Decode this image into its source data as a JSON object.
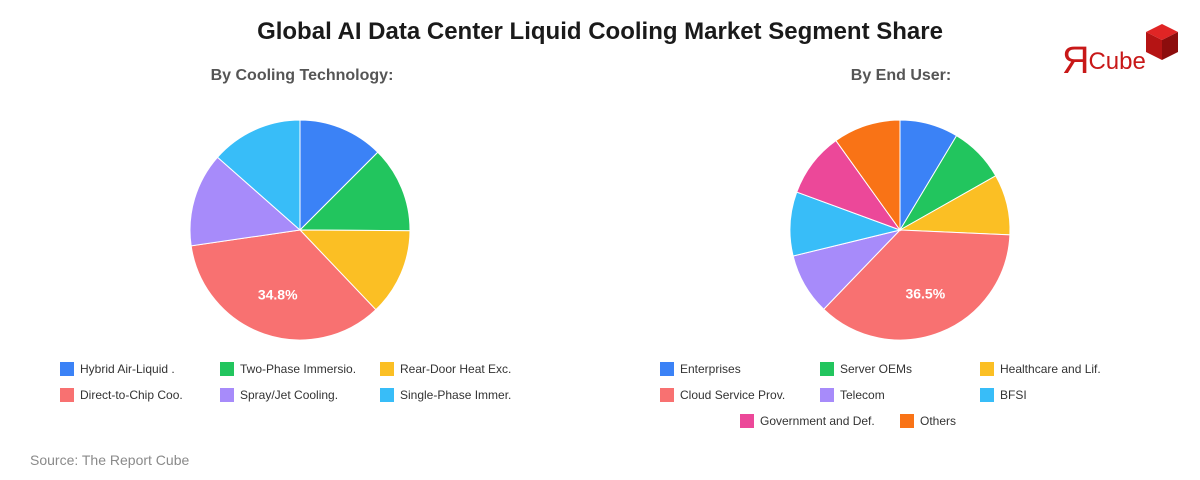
{
  "title": "Global AI Data Center Liquid Cooling Market Segment Share",
  "logo": {
    "letter": "Я",
    "text": "Cube"
  },
  "source": "Source: The Report Cube",
  "colors": {
    "blue": "#3b82f6",
    "green": "#22c55e",
    "yellow": "#fbbf24",
    "red": "#f87171",
    "purple": "#a78bfa",
    "sky": "#38bdf8",
    "pink": "#ec4899",
    "orange": "#f97316",
    "logo_red": "#c81818"
  },
  "chart_data": [
    {
      "type": "pie",
      "title": "By Cooling Technology:",
      "categories": [
        "Hybrid Air-Liquid .",
        "Two-Phase Immersio.",
        "Rear-Door Heat Exc.",
        "Direct-to-Chip Coo.",
        "Spray/Jet Cooling.",
        "Single-Phase Immer."
      ],
      "values": [
        12.5,
        12.6,
        12.8,
        34.8,
        13.8,
        13.5
      ],
      "colors": [
        "#3b82f6",
        "#22c55e",
        "#fbbf24",
        "#f87171",
        "#a78bfa",
        "#38bdf8"
      ],
      "data_labels": [
        "",
        "",
        "",
        "34.8%",
        "",
        ""
      ],
      "start_angle": "12 o'clock",
      "direction": "clockwise",
      "legend_position": "bottom"
    },
    {
      "type": "pie",
      "title": "By End User:",
      "categories": [
        "Enterprises",
        "Server OEMs",
        "Healthcare and Lif.",
        "Cloud Service Prov.",
        "Telecom",
        "BFSI",
        "Government and Def.",
        "Others"
      ],
      "values": [
        8.6,
        8.2,
        8.9,
        36.5,
        9.0,
        9.4,
        9.5,
        9.9
      ],
      "colors": [
        "#3b82f6",
        "#22c55e",
        "#fbbf24",
        "#f87171",
        "#a78bfa",
        "#38bdf8",
        "#ec4899",
        "#f97316"
      ],
      "data_labels": [
        "",
        "",
        "",
        "36.5%",
        "",
        "",
        "",
        ""
      ],
      "start_angle": "12 o'clock",
      "direction": "clockwise",
      "legend_position": "bottom"
    }
  ]
}
